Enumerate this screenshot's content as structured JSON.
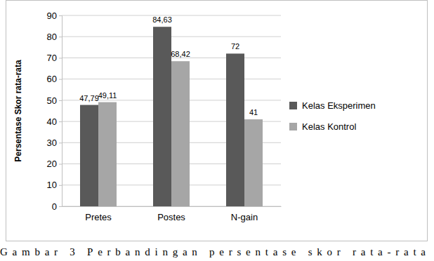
{
  "chart_data": {
    "type": "bar",
    "y_label": "Persentase Skor rata-rata",
    "caption": "Gambar 3 Perbandingan persentase skor rata-rata",
    "categories": [
      "Pretes",
      "Postes",
      "N-gain"
    ],
    "series": [
      {
        "name": "Kelas Eksperimen",
        "color": "#595959",
        "values": [
          47.79,
          84.63,
          72
        ],
        "value_labels": [
          "47,79",
          "84,63",
          "72"
        ]
      },
      {
        "name": "Kelas Kontrol",
        "color": "#a6a6a6",
        "values": [
          49.11,
          68.42,
          41
        ],
        "value_labels": [
          "49,11",
          "68,42",
          "41"
        ]
      }
    ],
    "ylim": [
      0,
      90
    ],
    "yticks": [
      0,
      10,
      20,
      30,
      40,
      50,
      60,
      70,
      80,
      90
    ],
    "grid": true,
    "legend": "right",
    "data_labels": true
  }
}
